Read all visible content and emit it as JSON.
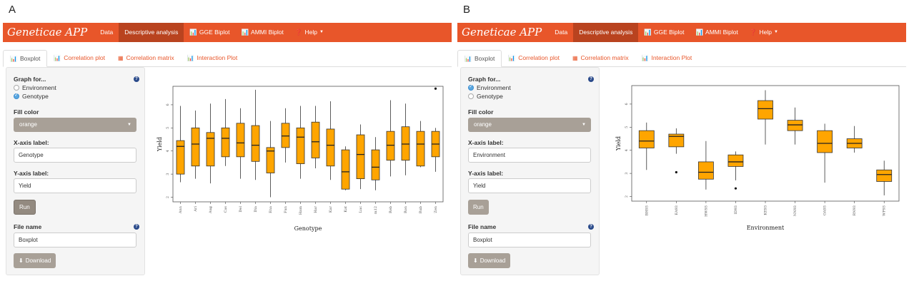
{
  "panels": [
    {
      "letter": "A",
      "navbar": {
        "brand": "Geneticae APP",
        "items": [
          {
            "label": "Data",
            "icon": ""
          },
          {
            "label": "Descriptive analysis",
            "icon": "",
            "active": true
          },
          {
            "label": "GGE Biplot",
            "icon": "chart-icon"
          },
          {
            "label": "AMMI Biplot",
            "icon": "chart-icon"
          },
          {
            "label": "Help",
            "icon": "question-icon",
            "dropdown": true
          }
        ]
      },
      "tabs": [
        {
          "label": "Boxplot",
          "icon": "chart-icon",
          "active": true
        },
        {
          "label": "Correlation plot",
          "icon": "chart-icon"
        },
        {
          "label": "Correlation matrix",
          "icon": "table-icon"
        },
        {
          "label": "Interaction Plot",
          "icon": "chart-icon"
        }
      ],
      "sidebar": {
        "graph_for_label": "Graph for...",
        "options": [
          {
            "label": "Environment",
            "checked": false
          },
          {
            "label": "Genotype",
            "checked": true
          }
        ],
        "fill_color_label": "Fill color",
        "fill_color_value": "orange",
        "xaxis_label": "X-axis label:",
        "xaxis_value": "Genotype",
        "yaxis_label": "Y-axis label:",
        "yaxis_value": "Yield",
        "run_label": "Run",
        "file_name_label": "File name",
        "file_name_value": "Boxplot",
        "download_label": "Download"
      }
    },
    {
      "letter": "B",
      "navbar": {
        "brand": "Geneticae APP",
        "items": [
          {
            "label": "Data",
            "icon": ""
          },
          {
            "label": "Descriptive analysis",
            "icon": "",
            "active": true
          },
          {
            "label": "GGE Biplot",
            "icon": "chart-icon"
          },
          {
            "label": "AMMI Biplot",
            "icon": "chart-icon"
          },
          {
            "label": "Help",
            "icon": "question-icon",
            "dropdown": true
          }
        ]
      },
      "tabs": [
        {
          "label": "Boxplot",
          "icon": "chart-icon",
          "active": true
        },
        {
          "label": "Correlation plot",
          "icon": "chart-icon"
        },
        {
          "label": "Correlation matrix",
          "icon": "table-icon"
        },
        {
          "label": "Interaction Plot",
          "icon": "chart-icon"
        }
      ],
      "sidebar": {
        "graph_for_label": "Graph for...",
        "options": [
          {
            "label": "Environment",
            "checked": true
          },
          {
            "label": "Genotype",
            "checked": false
          }
        ],
        "fill_color_label": "Fill color",
        "fill_color_value": "orange",
        "xaxis_label": "X-axis label:",
        "xaxis_value": "Environment",
        "yaxis_label": "Y-axis label:",
        "yaxis_value": "Yield",
        "run_label": "Run",
        "file_name_label": "File name",
        "file_name_value": "Boxplot",
        "download_label": "Download"
      }
    }
  ],
  "colors": {
    "navbar": "#e8562a",
    "navbar_active": "#b9431f",
    "box_fill": "#ffa500",
    "button": "#a8a097"
  },
  "chart_data": [
    {
      "type": "boxplot",
      "xlabel": "Genotype",
      "ylabel": "Yield",
      "ylim": [
        1.8,
        6.8
      ],
      "yticks": [
        2,
        3,
        4,
        5,
        6
      ],
      "categories": [
        "Ann",
        "Ari",
        "Aug",
        "Cas",
        "Del",
        "Dia",
        "Ena",
        "Fun",
        "Ham",
        "Har",
        "Kar",
        "Kat",
        "Luc",
        "m12",
        "Reb",
        "Ron",
        "Rub",
        "Zen"
      ],
      "boxes": [
        {
          "min": 2.65,
          "q1": 3.0,
          "median": 4.2,
          "q3": 4.45,
          "max": 5.95
        },
        {
          "min": 2.8,
          "q1": 3.35,
          "median": 4.3,
          "q3": 5.0,
          "max": 5.75
        },
        {
          "min": 2.6,
          "q1": 3.35,
          "median": 4.55,
          "q3": 4.8,
          "max": 6.05
        },
        {
          "min": 3.35,
          "q1": 3.75,
          "median": 4.55,
          "q3": 5.0,
          "max": 6.25
        },
        {
          "min": 2.8,
          "q1": 3.75,
          "median": 4.35,
          "q3": 5.2,
          "max": 5.85
        },
        {
          "min": 2.75,
          "q1": 3.55,
          "median": 4.25,
          "q3": 5.1,
          "max": 6.65
        },
        {
          "min": 2.0,
          "q1": 3.05,
          "median": 4.0,
          "q3": 4.15,
          "max": 5.3
        },
        {
          "min": 3.5,
          "q1": 4.15,
          "median": 4.65,
          "q3": 5.2,
          "max": 5.85
        },
        {
          "min": 2.8,
          "q1": 3.45,
          "median": 4.6,
          "q3": 5.0,
          "max": 5.95
        },
        {
          "min": 3.25,
          "q1": 3.7,
          "median": 4.4,
          "q3": 5.25,
          "max": 5.95
        },
        {
          "min": 2.75,
          "q1": 3.35,
          "median": 4.25,
          "q3": 4.95,
          "max": 6.15
        },
        {
          "min": 2.3,
          "q1": 2.35,
          "median": 3.1,
          "q3": 4.05,
          "max": 4.2
        },
        {
          "min": 2.35,
          "q1": 2.8,
          "median": 3.85,
          "q3": 4.7,
          "max": 5.15
        },
        {
          "min": 2.3,
          "q1": 2.75,
          "median": 3.3,
          "q3": 4.05,
          "max": 4.6
        },
        {
          "min": 2.9,
          "q1": 3.6,
          "median": 4.25,
          "q3": 4.85,
          "max": 6.2
        },
        {
          "min": 2.95,
          "q1": 3.6,
          "median": 4.3,
          "q3": 5.05,
          "max": 6.05
        },
        {
          "min": 3.3,
          "q1": 3.35,
          "median": 4.3,
          "q3": 4.85,
          "max": 5.3
        },
        {
          "min": 3.1,
          "q1": 3.75,
          "median": 4.3,
          "q3": 4.85,
          "max": 5.0
        }
      ],
      "outliers": [
        {
          "category": "Zen",
          "value": 6.7
        }
      ]
    },
    {
      "type": "boxplot",
      "xlabel": "Environment",
      "ylabel": "Yield",
      "ylim": [
        1.8,
        6.8
      ],
      "yticks": [
        2,
        3,
        4,
        5,
        6
      ],
      "categories": [
        "BH93",
        "EA93",
        "HW93",
        "ID93",
        "KE93",
        "NN93",
        "OA93",
        "RN93",
        "WP93"
      ],
      "boxes": [
        {
          "min": 3.15,
          "q1": 4.1,
          "median": 4.4,
          "q3": 4.85,
          "max": 5.2
        },
        {
          "min": 3.85,
          "q1": 4.15,
          "median": 4.6,
          "q3": 4.7,
          "max": 4.95
        },
        {
          "min": 2.3,
          "q1": 2.75,
          "median": 3.05,
          "q3": 3.5,
          "max": 4.4
        },
        {
          "min": 2.7,
          "q1": 3.3,
          "median": 3.5,
          "q3": 3.8,
          "max": 3.95
        },
        {
          "min": 4.25,
          "q1": 5.35,
          "median": 5.8,
          "q3": 6.15,
          "max": 6.6
        },
        {
          "min": 4.25,
          "q1": 4.85,
          "median": 5.1,
          "q3": 5.3,
          "max": 5.85
        },
        {
          "min": 2.6,
          "q1": 3.9,
          "median": 4.3,
          "q3": 4.85,
          "max": 5.15
        },
        {
          "min": 3.9,
          "q1": 4.1,
          "median": 4.3,
          "q3": 4.5,
          "max": 5.05
        },
        {
          "min": 2.05,
          "q1": 2.65,
          "median": 2.95,
          "q3": 3.15,
          "max": 3.55
        }
      ],
      "outliers": [
        {
          "category": "EA93",
          "value": 3.05
        },
        {
          "category": "ID93",
          "value": 2.35
        }
      ]
    }
  ]
}
